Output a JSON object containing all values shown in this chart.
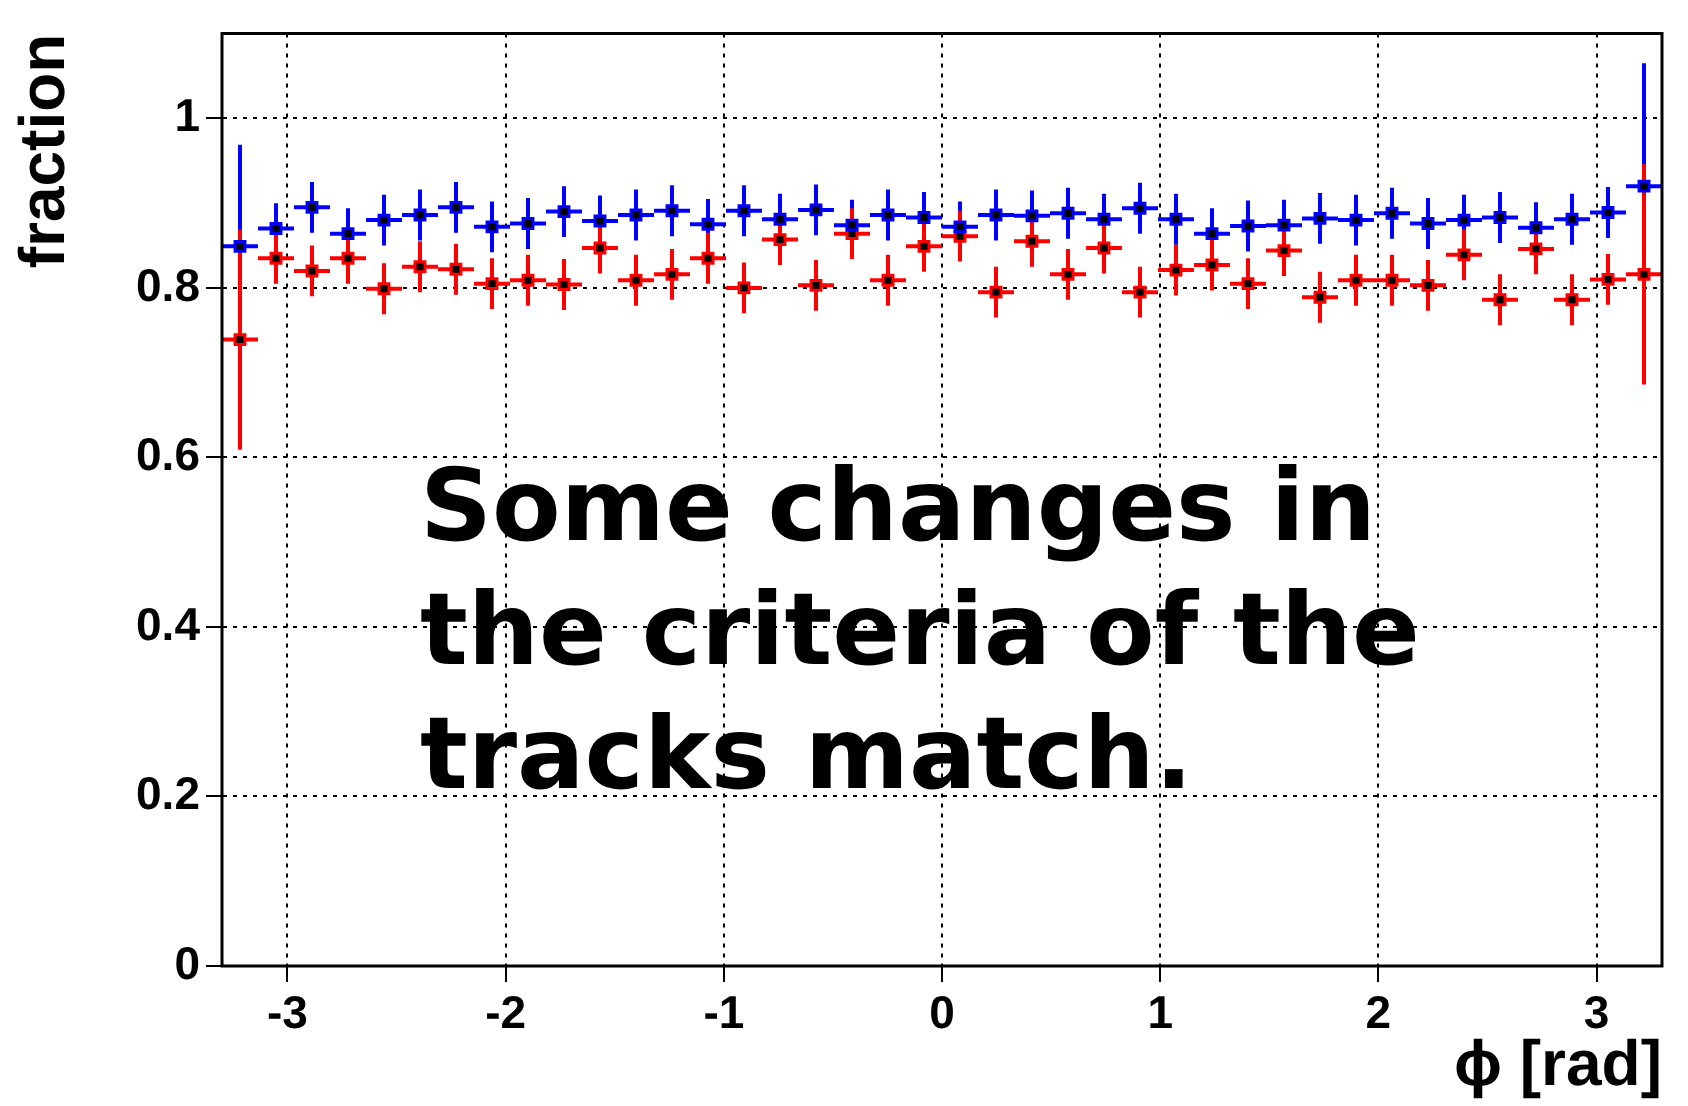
{
  "chart_data": {
    "type": "scatter",
    "xlabel": "ϕ [rad]",
    "ylabel": "fraction",
    "annotations": [
      "Some changes in the criteria of the tracks match."
    ],
    "xlim": [
      -3.3,
      3.3
    ],
    "xticks": [
      -3,
      -2,
      -1,
      0,
      1,
      2,
      3
    ],
    "ylim": [
      0,
      1.1
    ],
    "yticks": [
      0,
      0.2,
      0.4,
      0.6,
      0.8,
      1
    ],
    "grid": true,
    "legend": false,
    "marker": "square",
    "x": [
      -3.2175,
      -3.0525,
      -2.8875,
      -2.7225,
      -2.5575,
      -2.3925,
      -2.2275,
      -2.0625,
      -1.8975,
      -1.7325,
      -1.5675,
      -1.4025,
      -1.2375,
      -1.0725,
      -0.9075,
      -0.7425,
      -0.5775,
      -0.4125,
      -0.2475,
      -0.0825,
      0.0825,
      0.2475,
      0.4125,
      0.5775,
      0.7425,
      0.9075,
      1.0725,
      1.2375,
      1.4025,
      1.5675,
      1.7325,
      1.8975,
      2.0625,
      2.2275,
      2.3925,
      2.5575,
      2.7225,
      2.8875,
      3.0525,
      3.2175
    ],
    "series": [
      {
        "color": "#0000ff",
        "values": [
          0.849,
          0.87,
          0.895,
          0.864,
          0.88,
          0.886,
          0.895,
          0.872,
          0.876,
          0.89,
          0.879,
          0.886,
          0.891,
          0.875,
          0.891,
          0.881,
          0.892,
          0.874,
          0.886,
          0.883,
          0.872,
          0.886,
          0.885,
          0.888,
          0.881,
          0.894,
          0.881,
          0.864,
          0.873,
          0.874,
          0.882,
          0.88,
          0.888,
          0.876,
          0.88,
          0.883,
          0.871,
          0.881,
          0.889,
          0.92
        ],
        "errors": [
          0.12,
          0.03,
          0.03,
          0.03,
          0.03,
          0.03,
          0.03,
          0.03,
          0.03,
          0.03,
          0.03,
          0.03,
          0.03,
          0.03,
          0.03,
          0.03,
          0.03,
          0.03,
          0.03,
          0.03,
          0.03,
          0.03,
          0.03,
          0.03,
          0.03,
          0.03,
          0.03,
          0.03,
          0.03,
          0.03,
          0.03,
          0.03,
          0.03,
          0.03,
          0.03,
          0.03,
          0.03,
          0.03,
          0.03,
          0.145
        ],
        "xerrors": [
          0.0825,
          0.0825,
          0.0825,
          0.0825,
          0.0825,
          0.0825,
          0.0825,
          0.0825,
          0.0825,
          0.0825,
          0.0825,
          0.0825,
          0.0825,
          0.0825,
          0.0825,
          0.0825,
          0.0825,
          0.0825,
          0.0825,
          0.0825,
          0.0825,
          0.0825,
          0.0825,
          0.0825,
          0.0825,
          0.0825,
          0.0825,
          0.0825,
          0.0825,
          0.0825,
          0.0825,
          0.0825,
          0.0825,
          0.0825,
          0.0825,
          0.0825,
          0.0825,
          0.0825,
          0.0825,
          0.0825
        ]
      },
      {
        "color": "#ff0000",
        "values": [
          0.739,
          0.835,
          0.82,
          0.835,
          0.799,
          0.825,
          0.822,
          0.805,
          0.809,
          0.804,
          0.847,
          0.809,
          0.816,
          0.835,
          0.8,
          0.857,
          0.803,
          0.864,
          0.809,
          0.849,
          0.861,
          0.795,
          0.855,
          0.816,
          0.847,
          0.795,
          0.821,
          0.827,
          0.805,
          0.844,
          0.789,
          0.809,
          0.809,
          0.803,
          0.839,
          0.786,
          0.846,
          0.786,
          0.81,
          0.816
        ],
        "errors": [
          0.13,
          0.03,
          0.03,
          0.03,
          0.03,
          0.03,
          0.03,
          0.03,
          0.03,
          0.03,
          0.03,
          0.03,
          0.03,
          0.03,
          0.03,
          0.03,
          0.03,
          0.03,
          0.03,
          0.03,
          0.03,
          0.03,
          0.03,
          0.03,
          0.03,
          0.03,
          0.03,
          0.03,
          0.03,
          0.03,
          0.03,
          0.03,
          0.03,
          0.03,
          0.03,
          0.03,
          0.03,
          0.03,
          0.03,
          0.13
        ],
        "xerrors": [
          0.0825,
          0.0825,
          0.0825,
          0.0825,
          0.0825,
          0.0825,
          0.0825,
          0.0825,
          0.0825,
          0.0825,
          0.0825,
          0.0825,
          0.0825,
          0.0825,
          0.0825,
          0.0825,
          0.0825,
          0.0825,
          0.0825,
          0.0825,
          0.0825,
          0.0825,
          0.0825,
          0.0825,
          0.0825,
          0.0825,
          0.0825,
          0.0825,
          0.0825,
          0.0825,
          0.0825,
          0.0825,
          0.0825,
          0.0825,
          0.0825,
          0.0825,
          0.0825,
          0.0825,
          0.0825,
          0.0825
        ]
      }
    ]
  }
}
